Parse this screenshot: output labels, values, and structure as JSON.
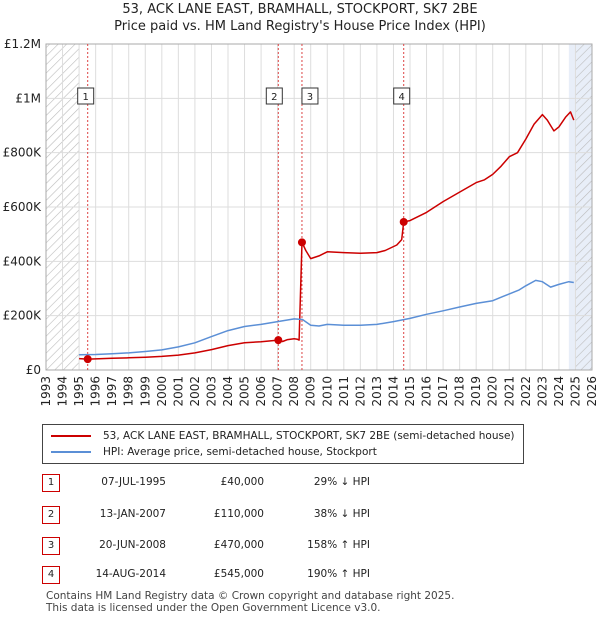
{
  "title_line1": "53, ACK LANE EAST, BRAMHALL, STOCKPORT, SK7 2BE",
  "title_line2": "Price paid vs. HM Land Registry's House Price Index (HPI)",
  "colors": {
    "property": "#cc0000",
    "hpi": "#5b8fd6",
    "hatch": "#bbbbbb",
    "grid": "#dddddd",
    "shade": "#e8eef8"
  },
  "chart_data": {
    "type": "line",
    "xlim": [
      1993,
      2026
    ],
    "ylim": [
      0,
      1200000
    ],
    "y_ticks": [
      0,
      200000,
      400000,
      600000,
      800000,
      1000000,
      1200000
    ],
    "y_tick_labels": [
      "£0",
      "£200K",
      "£400K",
      "£600K",
      "£800K",
      "£1M",
      "£1.2M"
    ],
    "x_ticks": [
      1993,
      1994,
      1995,
      1996,
      1997,
      1998,
      1999,
      2000,
      2001,
      2002,
      2003,
      2004,
      2005,
      2006,
      2007,
      2008,
      2009,
      2010,
      2011,
      2012,
      2013,
      2014,
      2015,
      2016,
      2017,
      2018,
      2019,
      2020,
      2021,
      2022,
      2023,
      2024,
      2025,
      2026
    ],
    "hatched_before": 1995.0,
    "hatched_after": 2025.0,
    "shaded_after": 2024.6,
    "series": [
      {
        "name": "53, ACK LANE EAST, BRAMHALL, STOCKPORT, SK7 2BE (semi-detached house)",
        "color": "#cc0000",
        "points": [
          [
            1995.0,
            42000
          ],
          [
            1995.52,
            40000
          ],
          [
            1996,
            41000
          ],
          [
            1997,
            43000
          ],
          [
            1998,
            45000
          ],
          [
            1999,
            47000
          ],
          [
            2000,
            50000
          ],
          [
            2001,
            55000
          ],
          [
            2002,
            63000
          ],
          [
            2003,
            75000
          ],
          [
            2004,
            90000
          ],
          [
            2005,
            100000
          ],
          [
            2006,
            104000
          ],
          [
            2007.04,
            110000
          ],
          [
            2007.3,
            105000
          ],
          [
            2007.6,
            112000
          ],
          [
            2008.0,
            115000
          ],
          [
            2008.2,
            113000
          ],
          [
            2008.3,
            110000
          ],
          [
            2008.47,
            470000
          ],
          [
            2008.7,
            440000
          ],
          [
            2009.0,
            410000
          ],
          [
            2009.5,
            420000
          ],
          [
            2010,
            435000
          ],
          [
            2011,
            432000
          ],
          [
            2012,
            430000
          ],
          [
            2013,
            432000
          ],
          [
            2013.5,
            440000
          ],
          [
            2014.2,
            460000
          ],
          [
            2014.5,
            480000
          ],
          [
            2014.62,
            545000
          ],
          [
            2015,
            550000
          ],
          [
            2016,
            580000
          ],
          [
            2017,
            620000
          ],
          [
            2018,
            655000
          ],
          [
            2019,
            690000
          ],
          [
            2019.5,
            700000
          ],
          [
            2020,
            720000
          ],
          [
            2020.5,
            750000
          ],
          [
            2021,
            785000
          ],
          [
            2021.5,
            800000
          ],
          [
            2022,
            850000
          ],
          [
            2022.5,
            905000
          ],
          [
            2023.0,
            940000
          ],
          [
            2023.3,
            920000
          ],
          [
            2023.7,
            880000
          ],
          [
            2024,
            895000
          ],
          [
            2024.4,
            930000
          ],
          [
            2024.7,
            950000
          ],
          [
            2024.9,
            920000
          ]
        ]
      },
      {
        "name": "HPI: Average price, semi-detached house, Stockport",
        "color": "#5b8fd6",
        "points": [
          [
            1995.0,
            56000
          ],
          [
            1996,
            57000
          ],
          [
            1997,
            60000
          ],
          [
            1998,
            63000
          ],
          [
            1999,
            68000
          ],
          [
            2000,
            74000
          ],
          [
            2001,
            85000
          ],
          [
            2002,
            100000
          ],
          [
            2003,
            123000
          ],
          [
            2004,
            145000
          ],
          [
            2005,
            160000
          ],
          [
            2006,
            168000
          ],
          [
            2007,
            178000
          ],
          [
            2008,
            188000
          ],
          [
            2008.5,
            186000
          ],
          [
            2009.0,
            165000
          ],
          [
            2009.5,
            162000
          ],
          [
            2010,
            168000
          ],
          [
            2011,
            165000
          ],
          [
            2012,
            165000
          ],
          [
            2013,
            168000
          ],
          [
            2014,
            178000
          ],
          [
            2015,
            190000
          ],
          [
            2016,
            205000
          ],
          [
            2017,
            218000
          ],
          [
            2018,
            232000
          ],
          [
            2019,
            245000
          ],
          [
            2020,
            255000
          ],
          [
            2020.6,
            270000
          ],
          [
            2021,
            280000
          ],
          [
            2021.6,
            295000
          ],
          [
            2022,
            310000
          ],
          [
            2022.6,
            330000
          ],
          [
            2023,
            325000
          ],
          [
            2023.5,
            305000
          ],
          [
            2024,
            315000
          ],
          [
            2024.6,
            325000
          ],
          [
            2024.9,
            322000
          ]
        ]
      }
    ],
    "transactions": [
      {
        "num": "1",
        "year": 1995.52,
        "value": 40000,
        "date": "07-JUL-1995",
        "price": "£40,000",
        "hpi_text": "29% ↓ HPI"
      },
      {
        "num": "2",
        "year": 2007.04,
        "value": 110000,
        "date": "13-JAN-2007",
        "price": "£110,000",
        "hpi_text": "38% ↓ HPI"
      },
      {
        "num": "3",
        "year": 2008.47,
        "value": 470000,
        "date": "20-JUN-2008",
        "price": "£470,000",
        "hpi_text": "158% ↑ HPI"
      },
      {
        "num": "4",
        "year": 2014.62,
        "value": 545000,
        "date": "14-AUG-2014",
        "price": "£545,000",
        "hpi_text": "190% ↑ HPI"
      }
    ]
  },
  "legend": {
    "property_label": "53, ACK LANE EAST, BRAMHALL, STOCKPORT, SK7 2BE (semi-detached house)",
    "hpi_label": "HPI: Average price, semi-detached house, Stockport"
  },
  "footer_line1": "Contains HM Land Registry data © Crown copyright and database right 2025.",
  "footer_line2": "This data is licensed under the Open Government Licence v3.0."
}
